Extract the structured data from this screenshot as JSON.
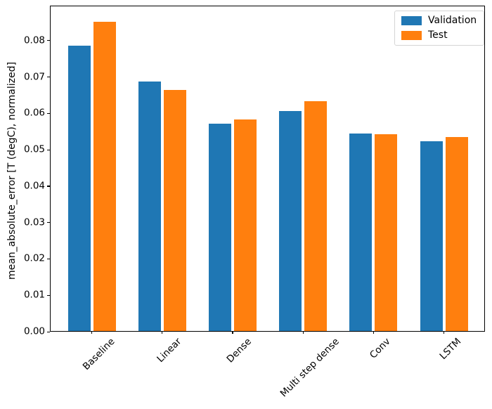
{
  "chart_data": {
    "type": "bar",
    "title": "",
    "xlabel": "",
    "ylabel": "mean_absolute_error [T (degC), normalized]",
    "categories": [
      "Baseline",
      "Linear",
      "Dense",
      "Multi step dense",
      "Conv",
      "LSTM"
    ],
    "series": [
      {
        "name": "Validation",
        "color": "#1f77b4",
        "values": [
          0.0785,
          0.0687,
          0.0572,
          0.0607,
          0.0545,
          0.0524
        ]
      },
      {
        "name": "Test",
        "color": "#ff7f0e",
        "values": [
          0.0852,
          0.0664,
          0.0583,
          0.0634,
          0.0543,
          0.0534
        ]
      }
    ],
    "ylim": [
      0,
      0.0896
    ],
    "ytick_labels": [
      "0.00",
      "0.01",
      "0.02",
      "0.03",
      "0.04",
      "0.05",
      "0.06",
      "0.07",
      "0.08"
    ],
    "ytick_values": [
      0,
      0.01,
      0.02,
      0.03,
      0.04,
      0.05,
      0.06,
      0.07,
      0.08
    ],
    "grid": false,
    "legend_position": "upper right",
    "xtick_rotation_deg": 45,
    "axis_color": "#000000",
    "background_color": "#ffffff"
  }
}
